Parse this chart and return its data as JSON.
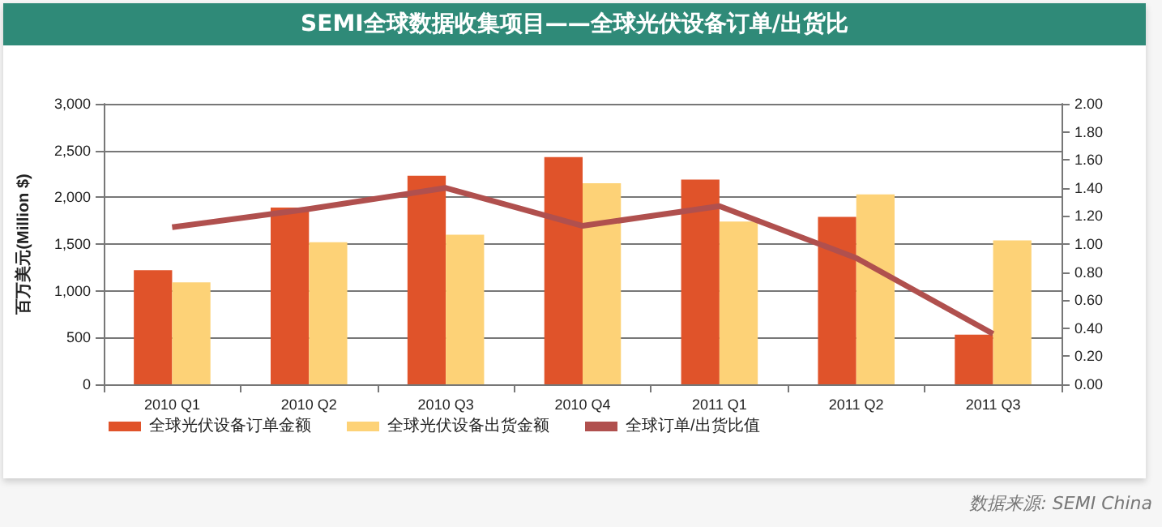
{
  "chart_data": {
    "type": "bar",
    "title": "SEMI全球数据收集项目——全球光伏设备订单/出货比",
    "ylabel": "百万美元(Million $)",
    "categories": [
      "2010 Q1",
      "2010 Q2",
      "2010 Q3",
      "2010 Q4",
      "2011 Q1",
      "2011 Q2",
      "2011 Q3"
    ],
    "series": [
      {
        "name": "全球光伏设备订单金额",
        "color": "#e0532a",
        "values": [
          1220,
          1890,
          2230,
          2430,
          2190,
          1790,
          530
        ]
      },
      {
        "name": "全球光伏设备出货金额",
        "color": "#fdd277",
        "values": [
          1090,
          1520,
          1600,
          2150,
          1740,
          2030,
          1540
        ]
      },
      {
        "name": "全球订单/出货比值",
        "type": "line",
        "axis": "y2",
        "color": "#b0504e",
        "values": [
          1.12,
          1.25,
          1.4,
          1.13,
          1.27,
          0.9,
          0.36
        ]
      }
    ],
    "ylim": [
      0,
      3000
    ],
    "yticks": [
      {
        "value": 0,
        "label": "0"
      },
      {
        "value": 500,
        "label": "500"
      },
      {
        "value": 1000,
        "label": "1,000"
      },
      {
        "value": 1500,
        "label": "1,500"
      },
      {
        "value": 2000,
        "label": "2,000"
      },
      {
        "value": 2500,
        "label": "2,500"
      },
      {
        "value": 3000,
        "label": "3,000"
      }
    ],
    "y2lim": [
      0,
      2
    ],
    "y2ticks": [
      {
        "value": 0,
        "label": "0.00"
      },
      {
        "value": 0.2,
        "label": "0.20"
      },
      {
        "value": 0.4,
        "label": "0.40"
      },
      {
        "value": 0.6,
        "label": "0.60"
      },
      {
        "value": 0.8,
        "label": "0.80"
      },
      {
        "value": 1,
        "label": "1.00"
      },
      {
        "value": 1.2,
        "label": "1.20"
      },
      {
        "value": 1.4,
        "label": "1.40"
      },
      {
        "value": 1.6,
        "label": "1.60"
      },
      {
        "value": 1.8,
        "label": "1.80"
      },
      {
        "value": 2,
        "label": "2.00"
      }
    ],
    "grid": "y",
    "legend": "bottom",
    "marker": "none",
    "line_style": "solid",
    "annotations": [
      "数据来源: SEMI China"
    ]
  }
}
